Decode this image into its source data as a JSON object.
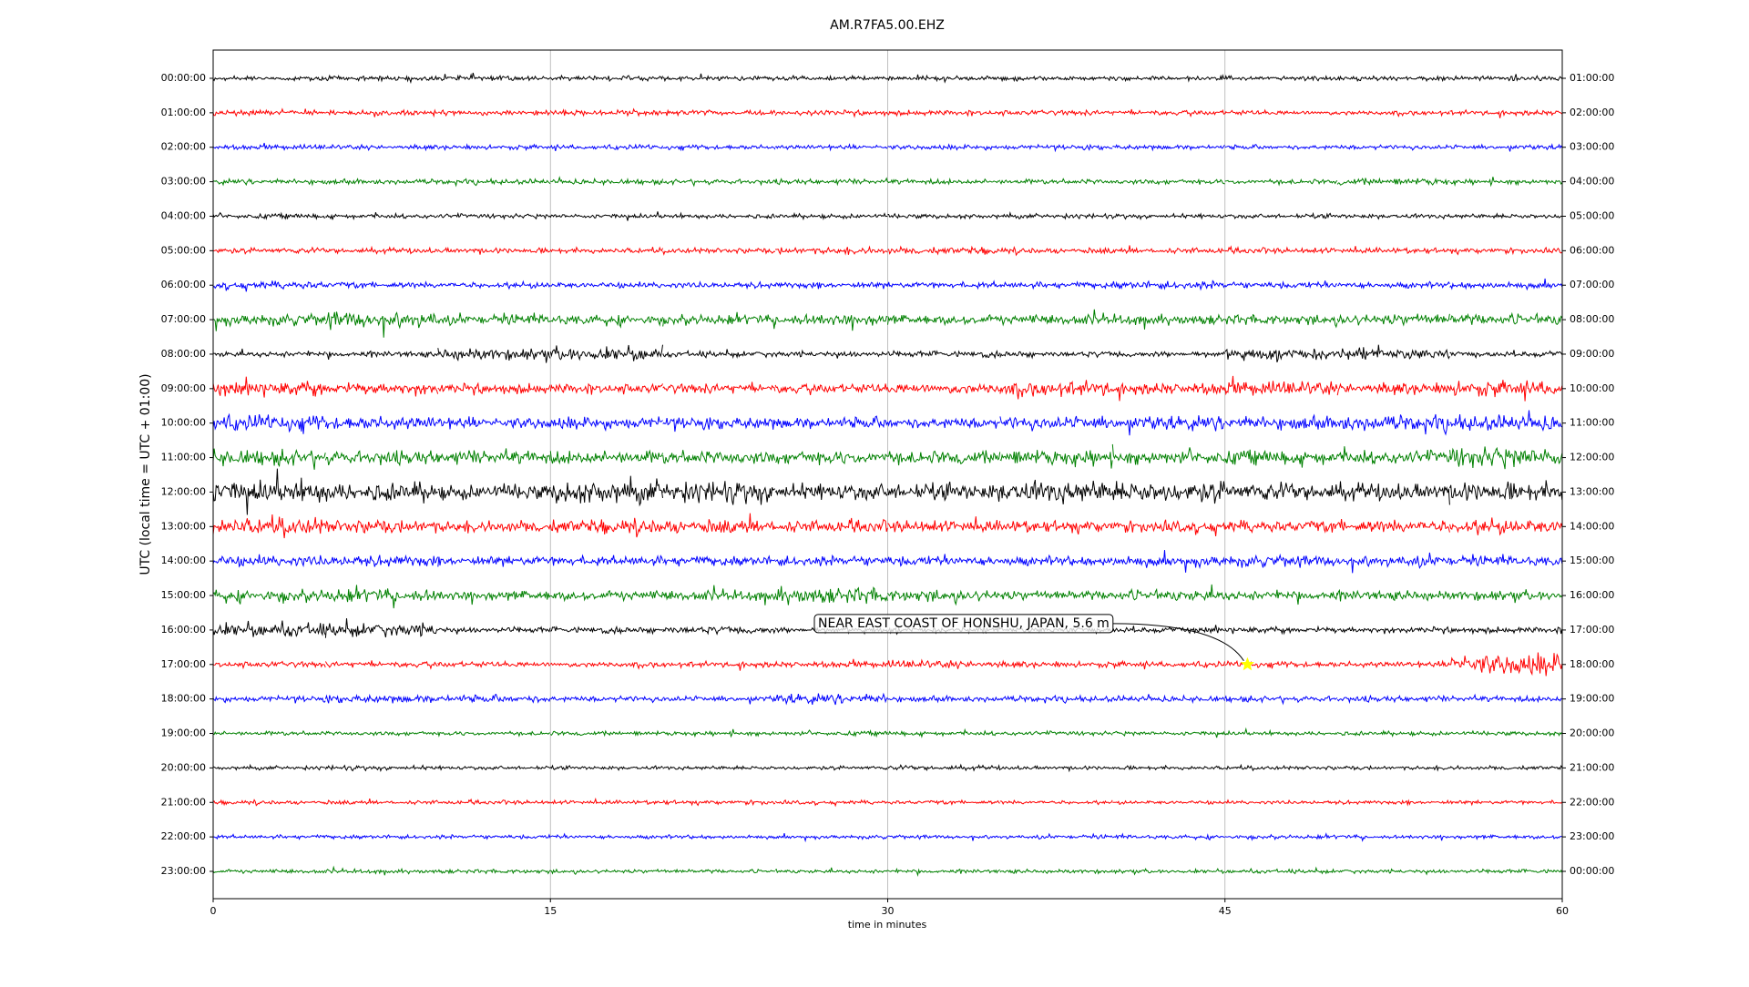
{
  "chart_data": {
    "type": "helicorder",
    "title": "AM.R7FA5.00.EHZ",
    "x_label": "time in minutes",
    "y_label": "UTC (local time = UTC + 01:00)",
    "xlim": [
      0,
      60
    ],
    "xticks": [
      0,
      15,
      30,
      45,
      60
    ],
    "grid": true,
    "rows": [
      {
        "label": "00:00:00",
        "right_label": "01:00:00",
        "color": "#000000",
        "amplitudes": [
          0.12,
          0.12,
          0.13,
          0.12,
          0.12,
          0.12,
          0.12,
          0.12,
          0.12,
          0.12,
          0.12,
          0.12
        ]
      },
      {
        "label": "01:00:00",
        "right_label": "02:00:00",
        "color": "#ff0000",
        "amplitudes": [
          0.13,
          0.13,
          0.13,
          0.13,
          0.13,
          0.13,
          0.13,
          0.13,
          0.13,
          0.13,
          0.13,
          0.13
        ]
      },
      {
        "label": "02:00:00",
        "right_label": "03:00:00",
        "color": "#0000ff",
        "amplitudes": [
          0.12,
          0.12,
          0.12,
          0.12,
          0.12,
          0.12,
          0.12,
          0.12,
          0.12,
          0.12,
          0.12,
          0.12
        ]
      },
      {
        "label": "03:00:00",
        "right_label": "04:00:00",
        "color": "#008000",
        "amplitudes": [
          0.13,
          0.13,
          0.13,
          0.13,
          0.13,
          0.13,
          0.13,
          0.13,
          0.13,
          0.13,
          0.18,
          0.13
        ]
      },
      {
        "label": "04:00:00",
        "right_label": "05:00:00",
        "color": "#000000",
        "amplitudes": [
          0.12,
          0.12,
          0.12,
          0.12,
          0.12,
          0.12,
          0.12,
          0.12,
          0.12,
          0.12,
          0.12,
          0.12
        ]
      },
      {
        "label": "05:00:00",
        "right_label": "06:00:00",
        "color": "#ff0000",
        "amplitudes": [
          0.14,
          0.14,
          0.14,
          0.14,
          0.14,
          0.18,
          0.18,
          0.14,
          0.14,
          0.14,
          0.14,
          0.14
        ]
      },
      {
        "label": "06:00:00",
        "right_label": "07:00:00",
        "color": "#0000ff",
        "amplitudes": [
          0.2,
          0.16,
          0.16,
          0.16,
          0.16,
          0.16,
          0.16,
          0.16,
          0.2,
          0.16,
          0.16,
          0.18
        ]
      },
      {
        "label": "07:00:00",
        "right_label": "08:00:00",
        "color": "#008000",
        "amplitudes": [
          0.3,
          0.45,
          0.25,
          0.25,
          0.25,
          0.3,
          0.25,
          0.25,
          0.25,
          0.25,
          0.3,
          0.3
        ]
      },
      {
        "label": "08:00:00",
        "right_label": "09:00:00",
        "color": "#000000",
        "amplitudes": [
          0.15,
          0.15,
          0.3,
          0.35,
          0.15,
          0.15,
          0.15,
          0.15,
          0.15,
          0.3,
          0.3,
          0.15
        ]
      },
      {
        "label": "09:00:00",
        "right_label": "10:00:00",
        "color": "#ff0000",
        "amplitudes": [
          0.35,
          0.3,
          0.25,
          0.25,
          0.25,
          0.25,
          0.3,
          0.4,
          0.3,
          0.35,
          0.3,
          0.4
        ]
      },
      {
        "label": "10:00:00",
        "right_label": "11:00:00",
        "color": "#0000ff",
        "amplitudes": [
          0.4,
          0.35,
          0.3,
          0.3,
          0.3,
          0.3,
          0.3,
          0.35,
          0.35,
          0.35,
          0.4,
          0.4
        ]
      },
      {
        "label": "11:00:00",
        "right_label": "12:00:00",
        "color": "#008000",
        "amplitudes": [
          0.4,
          0.35,
          0.35,
          0.35,
          0.35,
          0.35,
          0.35,
          0.4,
          0.35,
          0.35,
          0.35,
          0.55
        ]
      },
      {
        "label": "12:00:00",
        "right_label": "13:00:00",
        "color": "#000000",
        "amplitudes": [
          0.6,
          0.5,
          0.4,
          0.6,
          0.55,
          0.45,
          0.45,
          0.6,
          0.55,
          0.45,
          0.45,
          0.5
        ]
      },
      {
        "label": "13:00:00",
        "right_label": "14:00:00",
        "color": "#ff0000",
        "amplitudes": [
          0.45,
          0.35,
          0.3,
          0.35,
          0.35,
          0.3,
          0.3,
          0.3,
          0.3,
          0.3,
          0.35,
          0.4
        ]
      },
      {
        "label": "14:00:00",
        "right_label": "15:00:00",
        "color": "#0000ff",
        "amplitudes": [
          0.3,
          0.3,
          0.25,
          0.25,
          0.25,
          0.25,
          0.25,
          0.25,
          0.3,
          0.3,
          0.3,
          0.25
        ]
      },
      {
        "label": "15:00:00",
        "right_label": "16:00:00",
        "color": "#008000",
        "amplitudes": [
          0.3,
          0.35,
          0.25,
          0.25,
          0.25,
          0.4,
          0.3,
          0.25,
          0.3,
          0.25,
          0.25,
          0.25
        ]
      },
      {
        "label": "16:00:00",
        "right_label": "17:00:00",
        "color": "#000000",
        "amplitudes": [
          0.35,
          0.35,
          0.15,
          0.15,
          0.2,
          0.15,
          0.15,
          0.15,
          0.15,
          0.15,
          0.15,
          0.15
        ]
      },
      {
        "label": "17:00:00",
        "right_label": "18:00:00",
        "color": "#ff0000",
        "amplitudes": [
          0.15,
          0.15,
          0.15,
          0.15,
          0.15,
          0.15,
          0.2,
          0.15,
          0.15,
          0.15,
          0.15,
          0.55
        ]
      },
      {
        "label": "18:00:00",
        "right_label": "19:00:00",
        "color": "#0000ff",
        "amplitudes": [
          0.15,
          0.2,
          0.2,
          0.15,
          0.15,
          0.25,
          0.15,
          0.15,
          0.15,
          0.15,
          0.15,
          0.15
        ]
      },
      {
        "label": "19:00:00",
        "right_label": "20:00:00",
        "color": "#008000",
        "amplitudes": [
          0.11,
          0.11,
          0.11,
          0.11,
          0.11,
          0.11,
          0.11,
          0.11,
          0.11,
          0.11,
          0.11,
          0.11
        ]
      },
      {
        "label": "20:00:00",
        "right_label": "21:00:00",
        "color": "#000000",
        "amplitudes": [
          0.1,
          0.12,
          0.1,
          0.1,
          0.1,
          0.1,
          0.12,
          0.1,
          0.1,
          0.1,
          0.1,
          0.1
        ]
      },
      {
        "label": "21:00:00",
        "right_label": "22:00:00",
        "color": "#ff0000",
        "amplitudes": [
          0.1,
          0.1,
          0.1,
          0.1,
          0.11,
          0.1,
          0.1,
          0.1,
          0.1,
          0.1,
          0.1,
          0.1
        ]
      },
      {
        "label": "22:00:00",
        "right_label": "23:00:00",
        "color": "#0000ff",
        "amplitudes": [
          0.1,
          0.1,
          0.1,
          0.1,
          0.1,
          0.1,
          0.1,
          0.1,
          0.1,
          0.1,
          0.1,
          0.1
        ]
      },
      {
        "label": "23:00:00",
        "right_label": "00:00:00",
        "color": "#008000",
        "amplitudes": [
          0.1,
          0.1,
          0.1,
          0.1,
          0.1,
          0.1,
          0.1,
          0.1,
          0.1,
          0.1,
          0.1,
          0.1
        ]
      }
    ],
    "annotation": {
      "text": "NEAR EAST COAST OF HONSHU, JAPAN, 5.6 m",
      "x": 46,
      "row": 17,
      "marker_color": "#ffff00"
    }
  }
}
